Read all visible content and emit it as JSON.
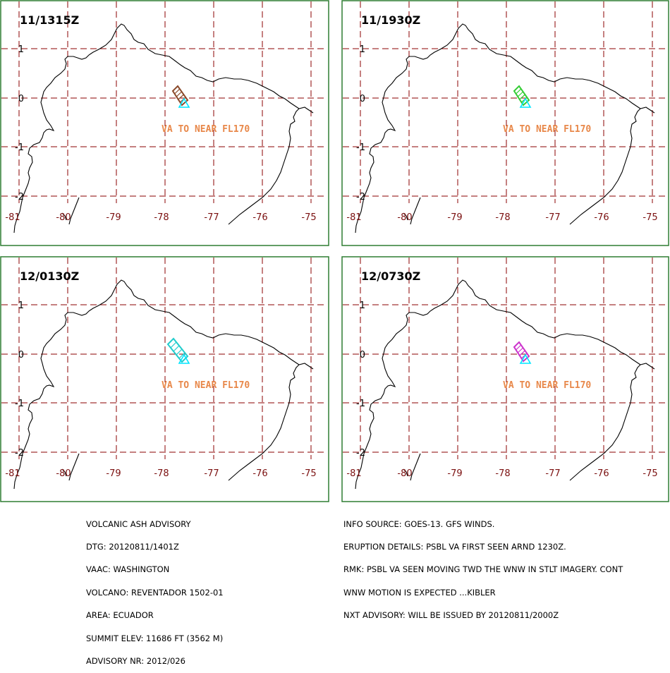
{
  "panels": [
    {
      "time": "11/1315Z",
      "label": "VA TO NEAR FL170",
      "ash_color": "#8b4a2b"
    },
    {
      "time": "11/1930Z",
      "label": "VA TO NEAR FL170",
      "ash_color": "#33cc33"
    },
    {
      "time": "12/0130Z",
      "label": "VA TO NEAR FL170",
      "ash_color": "#22cccc"
    },
    {
      "time": "12/0730Z",
      "label": "VA TO NEAR FL170",
      "ash_color": "#cc33cc"
    }
  ],
  "axes": {
    "lon_ticks": [
      "-81",
      "-80",
      "-79",
      "-78",
      "-77",
      "-76",
      "-75"
    ],
    "lat_ticks": [
      "1",
      "0",
      "-1",
      "-2"
    ]
  },
  "volcano_marker_color": "#00e5ff",
  "label_color": "#e8884a",
  "grid_color": "#8b0000",
  "advisory_left": [
    "VOLCANIC ASH ADVISORY",
    "DTG: 20120811/1401Z",
    "VAAC: WASHINGTON",
    "VOLCANO: REVENTADOR 1502-01",
    "AREA: ECUADOR",
    "SUMMIT ELEV: 11686 FT (3562 M)",
    "ADVISORY NR: 2012/026"
  ],
  "advisory_right": [
    "INFO SOURCE: GOES-13. GFS WINDS.",
    "ERUPTION DETAILS: PSBL VA FIRST SEEN ARND 1230Z.",
    "RMK: PSBL VA SEEN MOVING TWD THE WNW IN STLT IMAGERY. CONT",
    "WNW MOTION IS EXPECTED ...KIBLER",
    "NXT ADVISORY: WILL BE ISSUED BY 20120811/2000Z"
  ]
}
